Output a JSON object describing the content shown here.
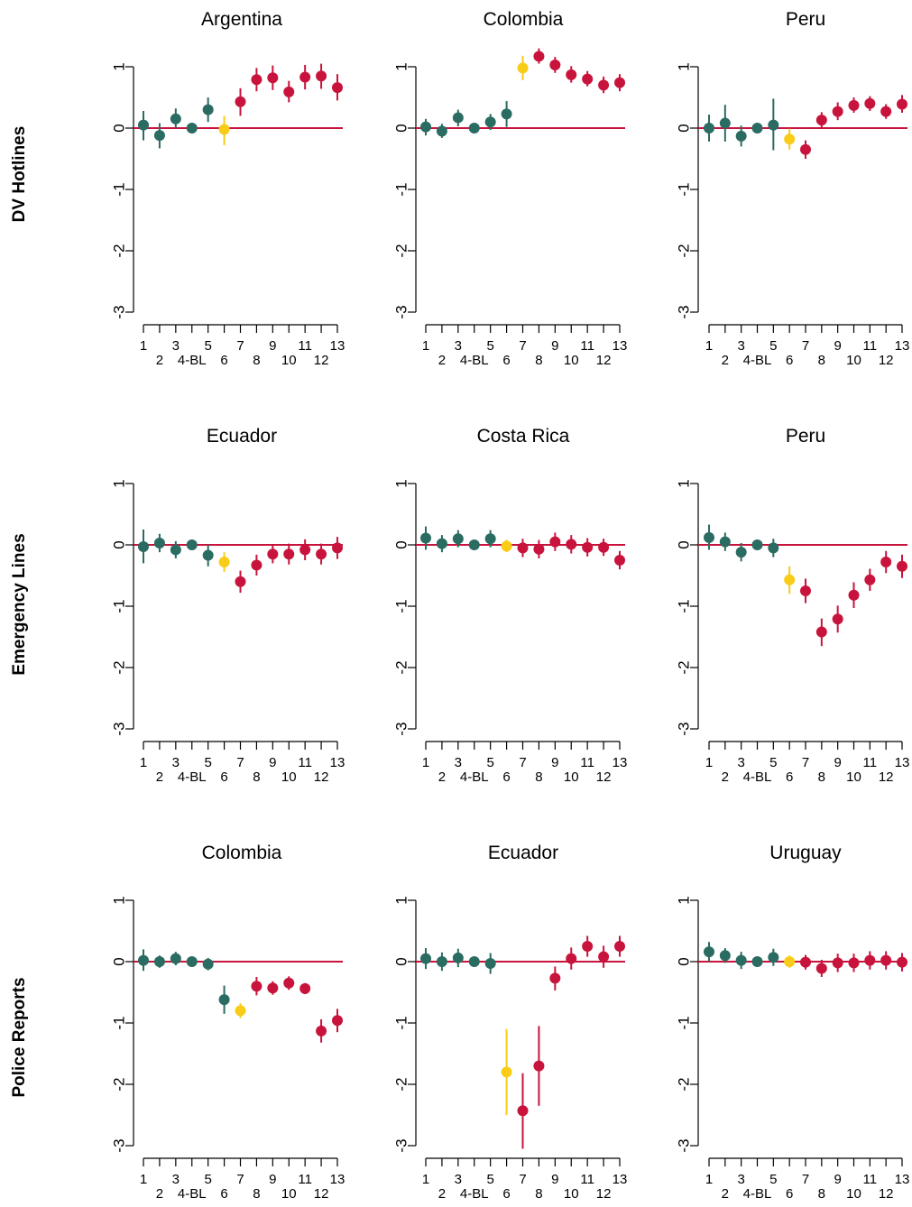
{
  "figure": {
    "row_labels": [
      "DV Hotlines",
      "Emergency Lines",
      "Police Reports"
    ],
    "colors": {
      "pre": "#2a6b62",
      "baseline_line": "#c8143c",
      "post": "#c8143c",
      "event": "#f8cc17"
    },
    "y_ticks": [
      "1",
      "0",
      "-1",
      "-2",
      "-3"
    ],
    "x_ticks_top": [
      "1",
      "3",
      "5",
      "7",
      "9",
      "11",
      "13"
    ],
    "x_ticks_bottom": [
      "2",
      "4-BL",
      "6",
      "8",
      "10",
      "12"
    ]
  },
  "chart_data": [
    {
      "type": "scatter",
      "title": "Argentina",
      "ylim": [
        -3,
        1
      ],
      "x": [
        1,
        2,
        3,
        4,
        5,
        6,
        7,
        8,
        9,
        10,
        11,
        12,
        13
      ],
      "values": [
        0.05,
        -0.12,
        0.15,
        0.0,
        0.3,
        -0.02,
        0.43,
        0.79,
        0.82,
        0.59,
        0.83,
        0.85,
        0.66
      ],
      "ci_low": [
        -0.2,
        -0.33,
        0.0,
        0.0,
        0.1,
        -0.28,
        0.2,
        0.6,
        0.62,
        0.42,
        0.63,
        0.64,
        0.45
      ],
      "ci_high": [
        0.28,
        0.08,
        0.32,
        0.0,
        0.5,
        0.2,
        0.65,
        0.98,
        1.02,
        0.77,
        1.03,
        1.05,
        0.88
      ],
      "point_type": [
        "pre",
        "pre",
        "pre",
        "pre",
        "pre",
        "event",
        "post",
        "post",
        "post",
        "post",
        "post",
        "post",
        "post"
      ]
    },
    {
      "type": "scatter",
      "title": "Colombia",
      "ylim": [
        -3,
        1
      ],
      "x": [
        1,
        2,
        3,
        4,
        5,
        6,
        7,
        8,
        9,
        10,
        11,
        12,
        13
      ],
      "values": [
        0.02,
        -0.05,
        0.17,
        0.0,
        0.1,
        0.23,
        0.98,
        1.17,
        1.03,
        0.87,
        0.8,
        0.7,
        0.74
      ],
      "ci_low": [
        -0.12,
        -0.16,
        0.03,
        0.0,
        -0.03,
        0.02,
        0.78,
        1.05,
        0.9,
        0.74,
        0.68,
        0.57,
        0.6
      ],
      "ci_high": [
        0.15,
        0.07,
        0.3,
        0.0,
        0.23,
        0.44,
        1.18,
        1.3,
        1.16,
        1.01,
        0.93,
        0.84,
        0.88
      ],
      "point_type": [
        "pre",
        "pre",
        "pre",
        "pre",
        "pre",
        "pre",
        "event",
        "post",
        "post",
        "post",
        "post",
        "post",
        "post"
      ]
    },
    {
      "type": "scatter",
      "title": "Peru",
      "ylim": [
        -3,
        1
      ],
      "x": [
        1,
        2,
        3,
        4,
        5,
        6,
        7,
        8,
        9,
        10,
        11,
        12,
        13
      ],
      "values": [
        0.0,
        0.08,
        -0.13,
        0.0,
        0.05,
        -0.18,
        -0.35,
        0.13,
        0.27,
        0.37,
        0.4,
        0.27,
        0.39
      ],
      "ci_low": [
        -0.22,
        -0.22,
        -0.3,
        0.0,
        -0.36,
        -0.35,
        -0.5,
        0.01,
        0.13,
        0.25,
        0.28,
        0.15,
        0.25
      ],
      "ci_high": [
        0.22,
        0.38,
        0.04,
        0.0,
        0.48,
        -0.01,
        -0.2,
        0.26,
        0.42,
        0.5,
        0.52,
        0.39,
        0.54
      ],
      "point_type": [
        "pre",
        "pre",
        "pre",
        "pre",
        "pre",
        "event",
        "post",
        "post",
        "post",
        "post",
        "post",
        "post",
        "post"
      ]
    },
    {
      "type": "scatter",
      "title": "Ecuador",
      "ylim": [
        -3,
        1
      ],
      "x": [
        1,
        2,
        3,
        4,
        5,
        6,
        7,
        8,
        9,
        10,
        11,
        12,
        13
      ],
      "values": [
        -0.03,
        0.03,
        -0.08,
        0.0,
        -0.17,
        -0.28,
        -0.6,
        -0.33,
        -0.15,
        -0.15,
        -0.08,
        -0.15,
        -0.05
      ],
      "ci_low": [
        -0.3,
        -0.12,
        -0.22,
        0.0,
        -0.35,
        -0.44,
        -0.78,
        -0.5,
        -0.3,
        -0.32,
        -0.25,
        -0.32,
        -0.23
      ],
      "ci_high": [
        0.25,
        0.18,
        0.06,
        0.0,
        0.0,
        -0.12,
        -0.42,
        -0.16,
        0.0,
        0.02,
        0.09,
        0.02,
        0.13
      ],
      "point_type": [
        "pre",
        "pre",
        "pre",
        "pre",
        "pre",
        "event",
        "post",
        "post",
        "post",
        "post",
        "post",
        "post",
        "post"
      ]
    },
    {
      "type": "scatter",
      "title": "Costa Rica",
      "ylim": [
        -3,
        1
      ],
      "x": [
        1,
        2,
        3,
        4,
        5,
        6,
        7,
        8,
        9,
        10,
        11,
        12,
        13
      ],
      "values": [
        0.11,
        0.02,
        0.1,
        0.0,
        0.1,
        -0.02,
        -0.05,
        -0.07,
        0.05,
        0.01,
        -0.04,
        -0.04,
        -0.25
      ],
      "ci_low": [
        -0.08,
        -0.12,
        -0.04,
        0.0,
        -0.04,
        -0.12,
        -0.2,
        -0.22,
        -0.1,
        -0.14,
        -0.19,
        -0.18,
        -0.4
      ],
      "ci_high": [
        0.3,
        0.16,
        0.24,
        0.0,
        0.24,
        0.08,
        0.1,
        0.08,
        0.2,
        0.16,
        0.11,
        0.1,
        -0.1
      ],
      "point_type": [
        "pre",
        "pre",
        "pre",
        "pre",
        "pre",
        "event",
        "post",
        "post",
        "post",
        "post",
        "post",
        "post",
        "post"
      ]
    },
    {
      "type": "scatter",
      "title": "Peru",
      "ylim": [
        -3,
        1
      ],
      "x": [
        1,
        2,
        3,
        4,
        5,
        6,
        7,
        8,
        9,
        10,
        11,
        12,
        13
      ],
      "values": [
        0.12,
        0.05,
        -0.12,
        0.0,
        -0.05,
        -0.57,
        -0.75,
        -1.42,
        -1.21,
        -0.82,
        -0.57,
        -0.28,
        -0.35
      ],
      "ci_low": [
        -0.08,
        -0.1,
        -0.27,
        0.0,
        -0.2,
        -0.8,
        -0.95,
        -1.65,
        -1.43,
        -1.03,
        -0.75,
        -0.46,
        -0.54
      ],
      "ci_high": [
        0.33,
        0.2,
        0.03,
        0.0,
        0.1,
        -0.35,
        -0.55,
        -1.2,
        -0.99,
        -0.61,
        -0.39,
        -0.1,
        -0.16
      ],
      "point_type": [
        "pre",
        "pre",
        "pre",
        "pre",
        "pre",
        "event",
        "post",
        "post",
        "post",
        "post",
        "post",
        "post",
        "post"
      ]
    },
    {
      "type": "scatter",
      "title": "Colombia",
      "ylim": [
        -3,
        1
      ],
      "x": [
        1,
        2,
        3,
        4,
        5,
        6,
        7,
        8,
        9,
        10,
        11,
        12,
        13
      ],
      "values": [
        0.02,
        0.0,
        0.05,
        0.0,
        -0.04,
        -0.62,
        -0.8,
        -0.4,
        -0.43,
        -0.35,
        -0.44,
        -1.13,
        -0.96
      ],
      "ci_low": [
        -0.15,
        -0.1,
        -0.06,
        0.0,
        -0.14,
        -0.85,
        -0.92,
        -0.55,
        -0.54,
        -0.46,
        -0.53,
        -1.32,
        -1.15
      ],
      "ci_high": [
        0.2,
        0.1,
        0.16,
        0.0,
        0.06,
        -0.39,
        -0.68,
        -0.25,
        -0.32,
        -0.24,
        -0.35,
        -0.94,
        -0.77
      ],
      "point_type": [
        "pre",
        "pre",
        "pre",
        "pre",
        "pre",
        "pre",
        "event",
        "post",
        "post",
        "post",
        "post",
        "post",
        "post"
      ]
    },
    {
      "type": "scatter",
      "title": "Ecuador",
      "ylim": [
        -3,
        1
      ],
      "x": [
        1,
        2,
        3,
        4,
        5,
        6,
        7,
        8,
        9,
        10,
        11,
        12,
        13
      ],
      "values": [
        0.05,
        0.0,
        0.06,
        0.0,
        -0.03,
        -1.8,
        -2.43,
        -1.7,
        -0.27,
        0.05,
        0.25,
        0.08,
        0.25
      ],
      "ci_low": [
        -0.12,
        -0.15,
        -0.09,
        0.0,
        -0.2,
        -2.5,
        -3.05,
        -2.35,
        -0.47,
        -0.13,
        0.08,
        -0.1,
        0.08
      ],
      "ci_high": [
        0.22,
        0.15,
        0.21,
        0.0,
        0.14,
        -1.1,
        -1.82,
        -1.05,
        -0.08,
        0.23,
        0.42,
        0.26,
        0.42
      ],
      "point_type": [
        "pre",
        "pre",
        "pre",
        "pre",
        "pre",
        "event",
        "post",
        "post",
        "post",
        "post",
        "post",
        "post",
        "post"
      ]
    },
    {
      "type": "scatter",
      "title": "Uruguay",
      "ylim": [
        -3,
        1
      ],
      "x": [
        1,
        2,
        3,
        4,
        5,
        6,
        7,
        8,
        9,
        10,
        11,
        12,
        13
      ],
      "values": [
        0.16,
        0.1,
        0.02,
        0.0,
        0.07,
        0.0,
        -0.01,
        -0.11,
        -0.02,
        -0.02,
        0.02,
        0.02,
        -0.01
      ],
      "ci_low": [
        0.0,
        -0.02,
        -0.12,
        0.0,
        -0.07,
        -0.1,
        -0.13,
        -0.25,
        -0.17,
        -0.17,
        -0.13,
        -0.13,
        -0.16
      ],
      "ci_high": [
        0.32,
        0.22,
        0.16,
        0.0,
        0.21,
        0.1,
        0.11,
        0.03,
        0.13,
        0.13,
        0.17,
        0.17,
        0.14
      ],
      "point_type": [
        "pre",
        "pre",
        "pre",
        "pre",
        "pre",
        "event",
        "post",
        "post",
        "post",
        "post",
        "post",
        "post",
        "post"
      ]
    }
  ]
}
